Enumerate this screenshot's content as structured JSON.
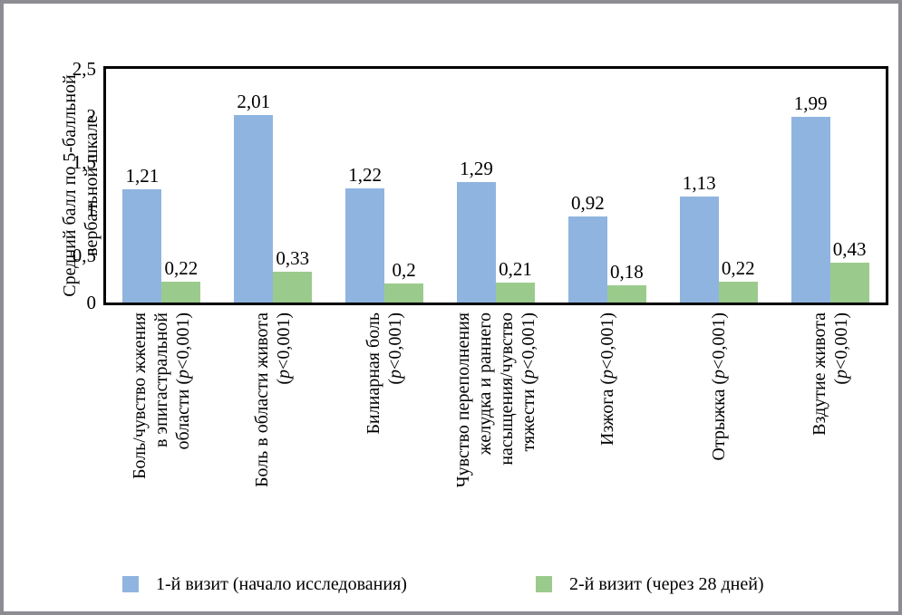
{
  "chart_data": {
    "type": "bar",
    "title": "",
    "ylabel": "Средний балл по 5-балльной вербальной шкале",
    "ylabel_display": "Средний балл по 5-балльной\nвербальной шкале",
    "ylim": [
      0,
      2.5
    ],
    "yticks": [
      "2,5",
      "2",
      "1,5",
      "1",
      "0,5",
      "0"
    ],
    "ytick_values": [
      2.5,
      2,
      1.5,
      1,
      0.5,
      0
    ],
    "grid": false,
    "legend_position": "bottom",
    "categories": [
      "Боль/чувство жжения в эпигастральной области (p<0,001)",
      "Боль в области живота (p<0,001)",
      "Билиарная боль (p<0,001)",
      "Чувство переполнения желудка и раннего насыщения/чувство тяжести (p<0,001)",
      "Изжога (p<0,001)",
      "Отрыжка (p<0,001)",
      "Вздутие живота (p<0,001)"
    ],
    "categories_lines": [
      [
        "Боль/чувство жжения",
        "в эпигастральной",
        "области (p<0,001)"
      ],
      [
        "Боль в области живота",
        "(p<0,001)"
      ],
      [
        "Билиарная боль",
        "(p<0,001)"
      ],
      [
        "Чувство переполнения",
        "желудка и раннего",
        "насыщения/чувство",
        "тяжести (p<0,001)"
      ],
      [
        "Изжога (p<0,001)"
      ],
      [
        "Отрыжка (p<0,001)"
      ],
      [
        "Вздутие живота",
        "(p<0,001)"
      ]
    ],
    "series": [
      {
        "name": "1-й визит (начало исследования)",
        "color": "#8FB4E0",
        "values": [
          1.21,
          2.01,
          1.22,
          1.29,
          0.92,
          1.13,
          1.99
        ],
        "labels": [
          "1,21",
          "2,01",
          "1,22",
          "1,29",
          "0,92",
          "1,13",
          "1,99"
        ]
      },
      {
        "name": "2-й визит (через 28 дней)",
        "color": "#9BCB8C",
        "values": [
          0.22,
          0.33,
          0.2,
          0.21,
          0.18,
          0.22,
          0.43
        ],
        "labels": [
          "0,22",
          "0,33",
          "0,2",
          "0,21",
          "0,18",
          "0,22",
          "0,43"
        ]
      }
    ],
    "colors": {
      "axis": "#000000",
      "frame_border": "#8c8c92",
      "background": "#ffffff"
    }
  }
}
